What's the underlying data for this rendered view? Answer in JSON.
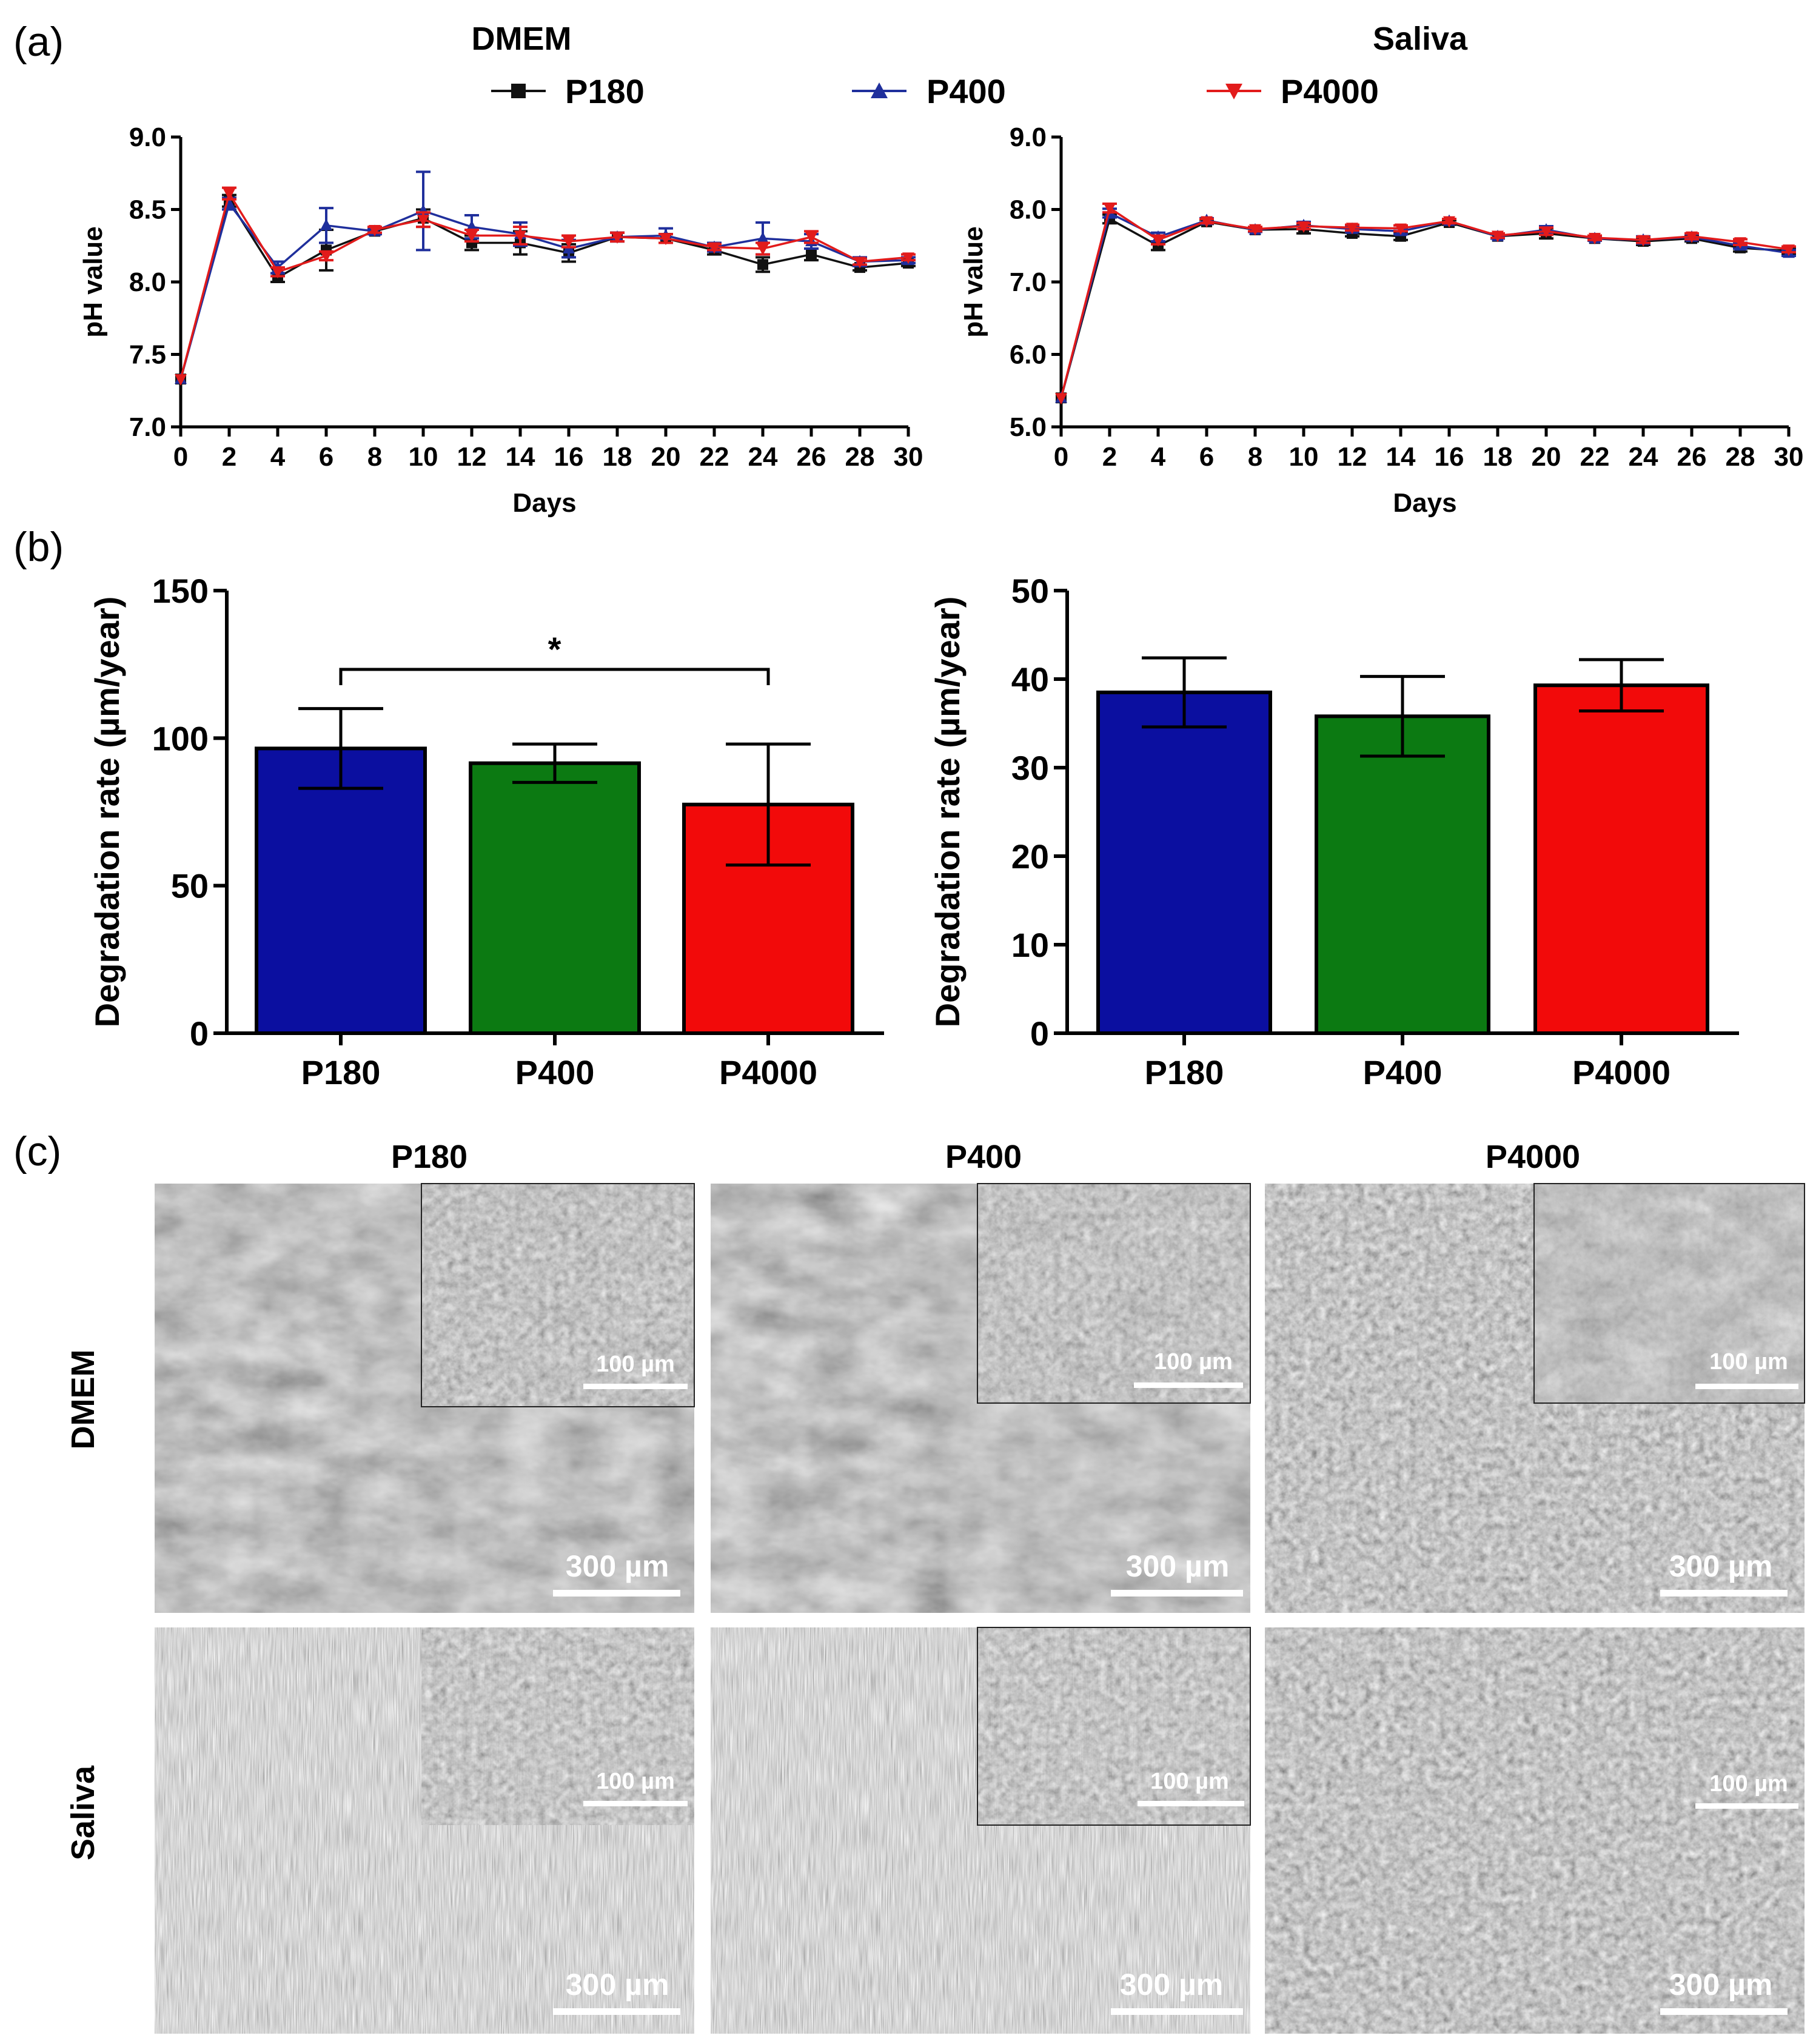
{
  "panel_labels": {
    "a": "(a)",
    "b": "(b)",
    "c": "(c)"
  },
  "legend": [
    {
      "label": "P180",
      "marker": "square",
      "color": "#111111"
    },
    {
      "label": "P400",
      "marker": "triangle-up",
      "color": "#1f2f9c"
    },
    {
      "label": "P4000",
      "marker": "triangle-down",
      "color": "#e21b1b"
    }
  ],
  "chart_data": [
    {
      "id": "ph-dmem",
      "type": "line",
      "title": "DMEM",
      "xlabel": "Days",
      "ylabel": "pH value",
      "xlim": [
        0,
        30
      ],
      "ylim": [
        7.0,
        9.0
      ],
      "xticks": [
        "0",
        "2",
        "4",
        "6",
        "8",
        "10",
        "12",
        "14",
        "16",
        "18",
        "20",
        "22",
        "24",
        "26",
        "28",
        "30"
      ],
      "yticks": [
        "7.0",
        "7.5",
        "8.0",
        "8.5",
        "9.0"
      ],
      "x": [
        0,
        2,
        4,
        6,
        8,
        10,
        12,
        14,
        16,
        18,
        20,
        22,
        24,
        26,
        28,
        30
      ],
      "series": [
        {
          "name": "P180",
          "values": [
            7.33,
            8.56,
            8.03,
            8.22,
            8.35,
            8.44,
            8.27,
            8.27,
            8.2,
            8.31,
            8.3,
            8.22,
            8.12,
            8.19,
            8.1,
            8.13
          ],
          "errors": [
            0,
            0.04,
            0.03,
            0.14,
            0.02,
            0.06,
            0.05,
            0.08,
            0.06,
            0.03,
            0.03,
            0.03,
            0.05,
            0.04,
            0.02,
            0.02
          ]
        },
        {
          "name": "P400",
          "values": [
            7.33,
            8.54,
            8.1,
            8.39,
            8.35,
            8.49,
            8.38,
            8.33,
            8.23,
            8.31,
            8.32,
            8.24,
            8.3,
            8.28,
            8.14,
            8.15
          ],
          "errors": [
            0,
            0.04,
            0.04,
            0.12,
            0.02,
            0.27,
            0.08,
            0.08,
            0.06,
            0.03,
            0.05,
            0.03,
            0.11,
            0.05,
            0.03,
            0.02
          ]
        },
        {
          "name": "P4000",
          "values": [
            7.33,
            8.61,
            8.07,
            8.18,
            8.36,
            8.43,
            8.32,
            8.32,
            8.28,
            8.31,
            8.3,
            8.24,
            8.23,
            8.31,
            8.14,
            8.17
          ],
          "errors": [
            0,
            0.04,
            0.03,
            0.03,
            0.02,
            0.05,
            0.04,
            0.06,
            0.04,
            0.03,
            0.03,
            0.02,
            0.04,
            0.04,
            0.02,
            0.02
          ]
        }
      ]
    },
    {
      "id": "ph-saliva",
      "type": "line",
      "title": "Saliva",
      "xlabel": "Days",
      "ylabel": "pH value",
      "xlim": [
        0,
        30
      ],
      "ylim": [
        5.0,
        9.0
      ],
      "xticks": [
        "0",
        "2",
        "4",
        "6",
        "8",
        "10",
        "12",
        "14",
        "16",
        "18",
        "20",
        "22",
        "24",
        "26",
        "28",
        "30"
      ],
      "yticks": [
        "5.0",
        "6.0",
        "7.0",
        "8.0",
        "9.0"
      ],
      "x": [
        0,
        2,
        4,
        6,
        8,
        10,
        12,
        14,
        16,
        18,
        20,
        22,
        24,
        26,
        28,
        30
      ],
      "series": [
        {
          "name": "P180",
          "values": [
            5.4,
            7.87,
            7.5,
            7.83,
            7.72,
            7.73,
            7.67,
            7.63,
            7.82,
            7.63,
            7.67,
            7.6,
            7.56,
            7.6,
            7.47,
            7.43
          ],
          "errors": [
            0,
            0.06,
            0.06,
            0.03,
            0.03,
            0.06,
            0.04,
            0.05,
            0.03,
            0.03,
            0.07,
            0.03,
            0.05,
            0.04,
            0.05,
            0.04
          ]
        },
        {
          "name": "P400",
          "values": [
            5.4,
            7.95,
            7.62,
            7.85,
            7.72,
            7.78,
            7.73,
            7.7,
            7.84,
            7.63,
            7.72,
            7.6,
            7.58,
            7.62,
            7.5,
            7.4
          ],
          "errors": [
            0,
            0.06,
            0.06,
            0.03,
            0.03,
            0.05,
            0.04,
            0.04,
            0.03,
            0.03,
            0.05,
            0.03,
            0.05,
            0.04,
            0.04,
            0.04
          ]
        },
        {
          "name": "P4000",
          "values": [
            5.4,
            8.02,
            7.58,
            7.84,
            7.73,
            7.77,
            7.75,
            7.74,
            7.84,
            7.64,
            7.7,
            7.61,
            7.58,
            7.63,
            7.55,
            7.45
          ],
          "errors": [
            0,
            0.06,
            0.06,
            0.03,
            0.03,
            0.04,
            0.04,
            0.04,
            0.03,
            0.03,
            0.05,
            0.03,
            0.04,
            0.04,
            0.04,
            0.04
          ]
        }
      ]
    },
    {
      "id": "deg-dmem",
      "type": "bar",
      "ylabel": "Degradation rate (µm/year)",
      "categories": [
        "P180",
        "P400",
        "P4000"
      ],
      "values": [
        96.5,
        91.5,
        77.5
      ],
      "errors": [
        13.5,
        6.5,
        20.5
      ],
      "colors": [
        "#0b0fa0",
        "#0c7a12",
        "#f20a0a"
      ],
      "ylim": [
        0,
        150
      ],
      "yticks": [
        "0",
        "50",
        "100",
        "150"
      ],
      "significance": {
        "between": [
          "P180",
          "P4000"
        ],
        "label": "*"
      }
    },
    {
      "id": "deg-saliva",
      "type": "bar",
      "ylabel": "Degradation rate (µm/year)",
      "categories": [
        "P180",
        "P400",
        "P4000"
      ],
      "values": [
        38.5,
        35.8,
        39.3
      ],
      "errors": [
        3.9,
        4.5,
        2.9
      ],
      "colors": [
        "#0b0fa0",
        "#0c7a12",
        "#f20a0a"
      ],
      "ylim": [
        0,
        50
      ],
      "yticks": [
        "0",
        "10",
        "20",
        "30",
        "40",
        "50"
      ]
    }
  ],
  "sem": {
    "columns": [
      "P180",
      "P400",
      "P4000"
    ],
    "rows": [
      "DMEM",
      "Saliva"
    ],
    "scale_main": "300 µm",
    "scale_inset": "100 µm"
  }
}
